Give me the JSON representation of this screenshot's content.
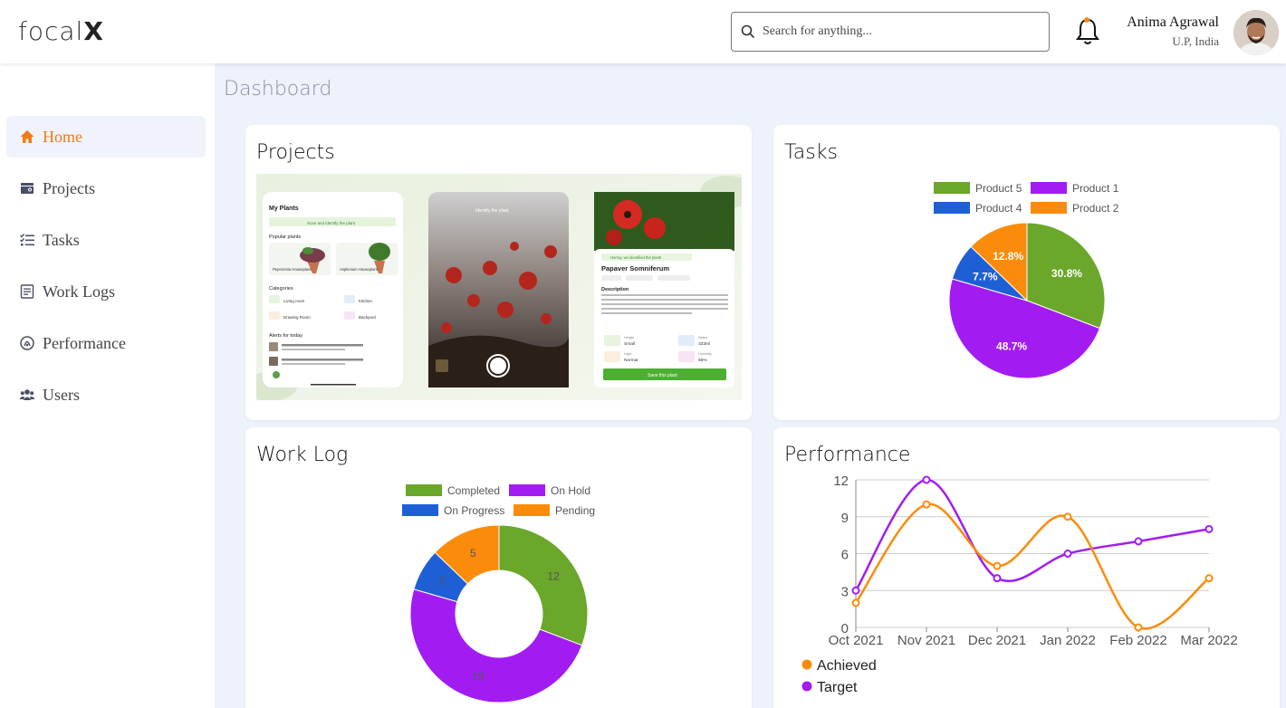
{
  "header": {
    "logo_text": "focal",
    "logo_x": "X",
    "search_placeholder": "Search for anything...",
    "user_name": "Anima Agrawal",
    "user_location": "U.P, India"
  },
  "sidebar": {
    "items": [
      {
        "label": "Home",
        "icon": "home-icon",
        "active": true
      },
      {
        "label": "Projects",
        "icon": "projects-icon"
      },
      {
        "label": "Tasks",
        "icon": "tasks-icon"
      },
      {
        "label": "Work Logs",
        "icon": "worklogs-icon"
      },
      {
        "label": "Performance",
        "icon": "performance-icon"
      },
      {
        "label": "Users",
        "icon": "users-icon"
      }
    ]
  },
  "page_title": "Dashboard",
  "cards": {
    "projects": {
      "title": "Projects"
    },
    "tasks": {
      "title": "Tasks"
    },
    "worklog": {
      "title": "Work Log"
    },
    "performance": {
      "title": "Performance"
    }
  },
  "project_preview": {
    "screen1": {
      "title": "My Plants",
      "scan_label": "Scan and identify the plant",
      "popular": "Popular plants",
      "plant1": "Peperomia Houseplant",
      "plant2": "Asplenium Houseplant",
      "categories": "Categories",
      "cat1": "Living room",
      "cat2": "Kitchen",
      "cat3": "Drawing Room",
      "cat4": "Backyard",
      "alerts": "Alerts for today"
    },
    "screen2": {
      "title": "Identify the plant"
    },
    "screen3": {
      "banner": "Hurray, we identified the plant!",
      "name": "Papaver Somniferum",
      "description": "Description",
      "height_label": "Height",
      "height_value": "Small",
      "water_label": "Water",
      "water_value": "333ml",
      "light_label": "Light",
      "light_value": "Normal",
      "humidity_label": "Humidity",
      "humidity_value": "56%",
      "save_label": "Save this plant"
    }
  },
  "colors": {
    "accent": "#f27a12",
    "green": "#6aa72a",
    "purple": "#a21cf2",
    "blue": "#1f5fd6",
    "orange": "#fb8c0b"
  },
  "chart_data": [
    {
      "type": "pie",
      "name": "Tasks",
      "legend_position": "top",
      "slices": [
        {
          "label": "Product 5",
          "value": 30.8,
          "display": "30.8%",
          "color": "#6aa72a"
        },
        {
          "label": "Product 1",
          "value": 48.7,
          "display": "48.7%",
          "color": "#a21cf2"
        },
        {
          "label": "Product 4",
          "value": 7.7,
          "display": "7.7%",
          "color": "#1f5fd6"
        },
        {
          "label": "Product 2",
          "value": 12.8,
          "display": "12.8%",
          "color": "#fb8c0b"
        }
      ]
    },
    {
      "type": "pie",
      "donut": true,
      "name": "Work Log",
      "legend_position": "top",
      "slices": [
        {
          "label": "Completed",
          "value": 12,
          "display": "12",
          "color": "#6aa72a"
        },
        {
          "label": "On Hold",
          "value": 19,
          "display": "19",
          "color": "#a21cf2"
        },
        {
          "label": "On Progress",
          "value": 3,
          "display": "3",
          "color": "#1f5fd6"
        },
        {
          "label": "Pending",
          "value": 5,
          "display": "5",
          "color": "#fb8c0b"
        }
      ]
    },
    {
      "type": "line",
      "name": "Performance",
      "smooth": true,
      "categories": [
        "Oct 2021",
        "Nov 2021",
        "Dec 2021",
        "Jan 2022",
        "Feb 2022",
        "Mar 2022"
      ],
      "series": [
        {
          "name": "Achieved",
          "values": [
            2,
            10,
            5,
            9,
            0,
            4
          ],
          "color": "#fb8c0b"
        },
        {
          "name": "Target",
          "values": [
            3,
            12,
            4,
            6,
            7,
            8
          ],
          "color": "#a21cf2"
        }
      ],
      "yticks": [
        0,
        3,
        6,
        9,
        12
      ],
      "ylim": [
        0,
        12
      ],
      "grid": true,
      "legend_position": "bottom-left"
    }
  ]
}
